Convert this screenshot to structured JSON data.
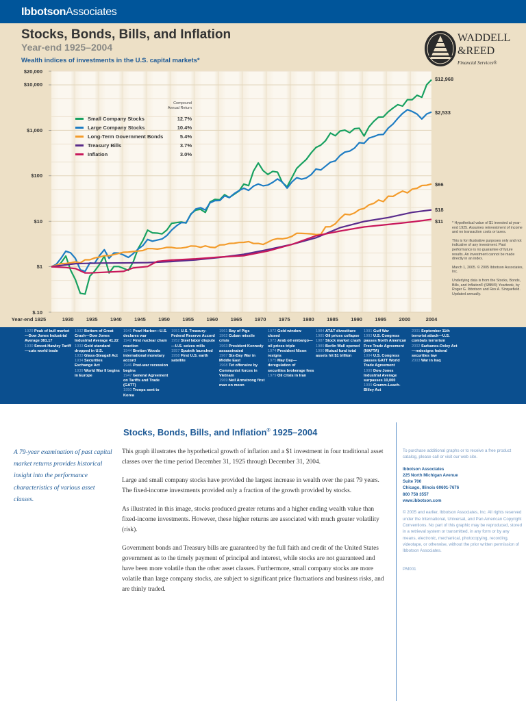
{
  "header": {
    "brand_bold": "Ibbotson",
    "brand_light": "Associates"
  },
  "title": "Stocks, Bonds, Bills, and Inflation",
  "subtitle": "Year-end 1925–2004",
  "wealth_heading": "Wealth indices of investments in the U.S. capital markets*",
  "logo": {
    "line1": "WADDELL",
    "line2": "&REED",
    "line3": "Financial Services®"
  },
  "legend": {
    "header": "Compound Annual Return"
  },
  "chart_data": {
    "type": "line",
    "title": "Wealth indices of investments in the U.S. capital markets*",
    "y_scale": "log",
    "ylim": [
      0.1,
      20000
    ],
    "y_ticks": [
      {
        "v": 20000,
        "label": "$20,000"
      },
      {
        "v": 10000,
        "label": "$10,000"
      },
      {
        "v": 1000,
        "label": "$1,000"
      },
      {
        "v": 100,
        "label": "$100"
      },
      {
        "v": 10,
        "label": "$10"
      },
      {
        "v": 1,
        "label": "$1"
      },
      {
        "v": 0.1,
        "label": "$.10"
      }
    ],
    "xlim": [
      1925,
      2004
    ],
    "x_ticks": [
      {
        "v": 1925,
        "label": "Year-end 1925"
      },
      {
        "v": 1930,
        "label": "1930"
      },
      {
        "v": 1935,
        "label": "1935"
      },
      {
        "v": 1940,
        "label": "1940"
      },
      {
        "v": 1945,
        "label": "1945"
      },
      {
        "v": 1950,
        "label": "1950"
      },
      {
        "v": 1955,
        "label": "1955"
      },
      {
        "v": 1960,
        "label": "1960"
      },
      {
        "v": 1965,
        "label": "1965"
      },
      {
        "v": 1970,
        "label": "1970"
      },
      {
        "v": 1975,
        "label": "1975"
      },
      {
        "v": 1980,
        "label": "1980"
      },
      {
        "v": 1985,
        "label": "1985"
      },
      {
        "v": 1990,
        "label": "1990"
      },
      {
        "v": 1995,
        "label": "1995"
      },
      {
        "v": 2000,
        "label": "2000"
      },
      {
        "v": 2004,
        "label": "2004"
      }
    ],
    "grid": true,
    "legend_position": "top-left",
    "series": [
      {
        "name": "Small Company Stocks",
        "return": "12.7%",
        "end_label": "$12,968",
        "color": "#17a060",
        "start_year": 1925,
        "values": [
          1,
          1.0,
          1.22,
          1.72,
          0.84,
          0.52,
          0.26,
          0.25,
          0.62,
          0.8,
          1.12,
          1.72,
          0.73,
          1.01,
          1.01,
          0.92,
          0.83,
          1.26,
          2.48,
          3.76,
          6.38,
          5.57,
          5.49,
          5.27,
          6.41,
          9.02,
          9.33,
          9.64,
          9.15,
          14.48,
          17.6,
          18.28,
          15.64,
          26.62,
          30.33,
          29.73,
          38.4,
          33.25,
          39.31,
          46.36,
          65.72,
          60.64,
          126.55,
          191.17,
          130.21,
          107.34,
          125.27,
          120.76,
          71.12,
          57.5,
          91.68,
          145.72,
          184.04,
          229.43,
          320.3,
          419.65,
          473.13,
          593.4,
          872.65,
          760.72,
          966.46,
          1011.02,
          889.23,
          1087.09,
          1108.95,
          749.34,
          1187.09,
          1575.34,
          1952.66,
          1972.5,
          2548.63,
          3085.05,
          3674.42,
          3408.64,
          4721.66,
          4730.61,
          5907.72,
          5342.09,
          10054.28,
          12968.48
        ]
      },
      {
        "name": "Large Company Stocks",
        "return": "10.4%",
        "end_label": "$2,533",
        "color": "#1d7cc3",
        "start_year": 1925,
        "values": [
          1,
          1.12,
          1.53,
          2.2,
          2.02,
          1.52,
          0.86,
          0.79,
          1.21,
          1.19,
          1.76,
          2.36,
          1.53,
          2.01,
          2.0,
          1.81,
          1.6,
          1.93,
          2.43,
          2.91,
          3.97,
          3.65,
          3.85,
          4.07,
          4.85,
          6.39,
          7.92,
          9.37,
          9.28,
          14.16,
          18.63,
          19.85,
          17.71,
          25.39,
          28.43,
          28.56,
          36.25,
          33.08,
          40.62,
          47.31,
          53.2,
          47.84,
          59.31,
          65.86,
          60.26,
          62.67,
          71.64,
          85.23,
          72.73,
          53.48,
          73.38,
          90.87,
          84.35,
          89.88,
          106.47,
          141.02,
          134.08,
          162.82,
          199.48,
          211.99,
          279.47,
          331.62,
          349.04,
          406.99,
          535.76,
          519.12,
          676.58,
          728.14,
          801.17,
          811.82,
          1116.8,
          1373.59,
          1831.78,
          2355.28,
          2850.87,
          2591.3,
          2283.31,
          1778.88,
          2289.2,
          2533.19
        ]
      },
      {
        "name": "Long-Term Government Bonds",
        "return": "5.4%",
        "end_label": "$66",
        "color": "#f39c2c",
        "start_year": 1925,
        "values": [
          1,
          1.08,
          1.17,
          1.18,
          1.22,
          1.28,
          1.21,
          1.42,
          1.42,
          1.56,
          1.63,
          1.75,
          1.75,
          1.85,
          1.96,
          2.08,
          2.1,
          2.16,
          2.21,
          2.27,
          2.51,
          2.5,
          2.44,
          2.52,
          2.67,
          2.66,
          2.55,
          2.58,
          2.67,
          2.86,
          2.83,
          2.67,
          2.87,
          2.69,
          2.64,
          3.01,
          3.04,
          3.25,
          3.29,
          3.41,
          3.44,
          3.57,
          3.24,
          3.25,
          3.09,
          3.47,
          3.92,
          4.14,
          4.1,
          4.28,
          4.66,
          5.45,
          5.41,
          5.35,
          5.29,
          5.09,
          5.16,
          7.53,
          7.6,
          8.76,
          11.47,
          14.28,
          13.91,
          15.23,
          18.03,
          19.15,
          22.87,
          24.74,
          29.27,
          27.03,
          35.57,
          35.17,
          40.76,
          46.08,
          42.09,
          50.84,
          53.12,
          61.01,
          61.86,
          66.17
        ]
      },
      {
        "name": "Treasury Bills",
        "return": "3.7%",
        "end_label": "$18",
        "color": "#5a2c8c",
        "points": [
          [
            1925,
            1
          ],
          [
            1930,
            1.17
          ],
          [
            1935,
            1.2
          ],
          [
            1940,
            1.21
          ],
          [
            1945,
            1.23
          ],
          [
            1950,
            1.3
          ],
          [
            1955,
            1.41
          ],
          [
            1960,
            1.6
          ],
          [
            1965,
            1.87
          ],
          [
            1970,
            2.38
          ],
          [
            1975,
            3.1
          ],
          [
            1980,
            4.34
          ],
          [
            1985,
            7.21
          ],
          [
            1990,
            9.88
          ],
          [
            1995,
            12.05
          ],
          [
            2000,
            15.7
          ],
          [
            2004,
            17.78
          ]
        ]
      },
      {
        "name": "Inflation",
        "return": "3.0%",
        "end_label": "$11",
        "color": "#c8185b",
        "points": [
          [
            1925,
            1
          ],
          [
            1928,
            0.96
          ],
          [
            1930,
            0.91
          ],
          [
            1932,
            0.73
          ],
          [
            1933,
            0.73
          ],
          [
            1940,
            0.79
          ],
          [
            1942,
            0.94
          ],
          [
            1945,
            1.01
          ],
          [
            1947,
            1.31
          ],
          [
            1950,
            1.4
          ],
          [
            1955,
            1.49
          ],
          [
            1960,
            1.63
          ],
          [
            1965,
            1.75
          ],
          [
            1970,
            2.21
          ],
          [
            1975,
            3.1
          ],
          [
            1980,
            4.8
          ],
          [
            1985,
            6.1
          ],
          [
            1990,
            7.5
          ],
          [
            1995,
            8.5
          ],
          [
            2000,
            9.7
          ],
          [
            2004,
            10.98
          ]
        ]
      }
    ]
  },
  "notes": [
    "* Hypothetical value of $1 invested at year-end 1925. Assumes reinvestment of income and no transaction costs or taxes.",
    "This is for illustrative purposes only and not indicative of any investment. Past performance is no guarantee of future results. An investment cannot be made directly in an index.",
    "March 1, 2005. © 2005 Ibbotson Associates, Inc.",
    "Underlying data is from the Stocks, Bonds, Bills, and Inflation® (SBBI®) Yearbook, by Roger G. Ibbotson and Rex A. Sinquefield. Updated annually."
  ],
  "timeline": [
    [
      [
        "1929",
        "Peak of bull market—Dow Jones Industrial Average 381.17"
      ],
      [
        "1930",
        "Smoot-Hawley Tariff—cuts world trade"
      ]
    ],
    [
      [
        "1932",
        "Bottom of Great Crash—Dow Jones Industrial Average 41.22"
      ],
      [
        "1933",
        "Gold standard dropped in U.S."
      ],
      [
        "1933",
        "Glass-Steagall Act"
      ],
      [
        "1934",
        "Securities Exchange Act"
      ],
      [
        "1939",
        "World War II begins in Europe"
      ]
    ],
    [
      [
        "1941",
        "Pearl Harbor—U.S. declares war"
      ],
      [
        "1942",
        "First nuclear chain reaction"
      ],
      [
        "1944",
        "Bretton Woods international monetary accord"
      ],
      [
        "1946",
        "Post-war recession begins"
      ],
      [
        "1947",
        "General Agreement on Tariffs and Trade (GATT)"
      ],
      [
        "1950",
        "Troops sent to Korea"
      ]
    ],
    [
      [
        "1951",
        "U.S. Treasury-Federal Reserve Accord"
      ],
      [
        "1952",
        "Steel labor dispute—U.S. seizes mills"
      ],
      [
        "1957",
        "Sputnik launched"
      ],
      [
        "1958",
        "First U.S. earth satellite"
      ]
    ],
    [
      [
        "1961",
        "Bay of Pigs"
      ],
      [
        "1962",
        "Cuban missile crisis"
      ],
      [
        "1963",
        "President Kennedy assassinated"
      ],
      [
        "1967",
        "Six-Day War in Middle East"
      ],
      [
        "1968",
        "Tet offensive by Communist forces in Vietnam"
      ],
      [
        "1969",
        "Neil Armstrong first man on moon"
      ]
    ],
    [
      [
        "1972",
        "Gold window closed"
      ],
      [
        "1973",
        "Arab oil embargo—oil prices triple"
      ],
      [
        "1974",
        "President Nixon resigns"
      ],
      [
        "1975",
        "May Day—deregulation of securities brokerage fees"
      ],
      [
        "1979",
        "Oil crisis in Iran"
      ]
    ],
    [
      [
        "1984",
        "AT&T divestiture"
      ],
      [
        "1985",
        "Oil prices collapse"
      ],
      [
        "1987",
        "Stock market crash"
      ],
      [
        "1989",
        "Berlin Wall opened"
      ],
      [
        "1990",
        "Mutual fund total assets hit $1 trillion"
      ]
    ],
    [
      [
        "1991",
        "Gulf War"
      ],
      [
        "1993",
        "U.S. Congress passes North American Free Trade Agreement (NAFTA)"
      ],
      [
        "1994",
        "U.S. Congress passes GATT World Trade Agreement"
      ],
      [
        "1999",
        "Dow Jones Industrial Average surpasses 10,000"
      ],
      [
        "1999",
        "Gramm-Leach-Bliley Act"
      ]
    ],
    [
      [
        "2001",
        "September 11th terrorist attack—U.S. combats terrorism"
      ],
      [
        "2002",
        "Sarbanes-Oxley Act—redesigns federal securities law"
      ],
      [
        "2003",
        "War in Iraq"
      ]
    ]
  ],
  "bottom": {
    "title": "Stocks, Bonds, Bills, and Inflation",
    "title_mark": "®",
    "title_years": " 1925–2004",
    "left": "A 79-year examination of past capital market returns provides historical insight into the performance characteristics of various asset classes.",
    "paragraphs": [
      "This graph illustrates the hypothetical growth of inflation and a $1 investment in four traditional asset classes over the time period December 31, 1925 through December 31, 2004.",
      "Large and small company stocks have provided the largest increase in wealth over the past 79 years. The fixed-income investments provided only a fraction of the growth provided by stocks.",
      "As illustrated in this image, stocks produced greater returns and a higher ending wealth value than fixed-income investments. However, these higher returns are associated with much greater volatility (risk).",
      "Government bonds and Treasury bills are guaranteed by the full faith and credit of the United States government as to the timely payment of principal and interest, while stocks are not guaranteed and have been more volatile than the other asset classes. Furthermore, small company stocks are more volatile than large company stocks, are subject to significant price fluctuations and business risks, and are thinly traded."
    ],
    "purchase": "To purchase additional graphs or to receive a free product catalog, please call or visit our web site.",
    "address": [
      "Ibbotson Associates",
      "225 North Michigan Avenue",
      "Suite 700",
      "Chicago, Illinois 60601-7676",
      "800 758 3557",
      "www.ibbotson.com"
    ],
    "copyright": "© 2005 and earlier, Ibbotson Associates, Inc. All rights reserved under the International, Universal, and Pan American Copyright Conventions. No part of this graphic may be reproduced, stored in a retrieval system or transmitted, in any form or by any means, electronic, mechanical, photocopying, recording, videotape, or otherwise, without the prior written permission of Ibbotson Associates.",
    "code": "PM001"
  }
}
